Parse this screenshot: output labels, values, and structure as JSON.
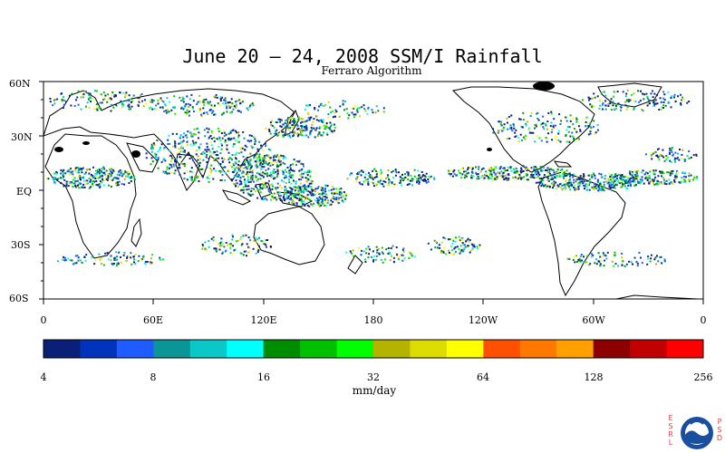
{
  "title": "June 20 – 24, 2008 SSM/I Rainfall",
  "subtitle": "Ferraro Algorithm",
  "lat_labels": [
    "60N",
    "30N",
    "EQ",
    "30S",
    "60S"
  ],
  "lon_labels": [
    "0",
    "60E",
    "120E",
    "180",
    "120W",
    "60W",
    "0"
  ],
  "colorbar": {
    "colors": [
      "#0a1f78",
      "#0033bb",
      "#1e5cff",
      "#0a9696",
      "#0ac8c8",
      "#00ffff",
      "#008c00",
      "#00c000",
      "#00ff00",
      "#b4b400",
      "#dcdc00",
      "#ffff00",
      "#ff5000",
      "#ff7800",
      "#ffa000",
      "#8c0000",
      "#c00000",
      "#ff0000"
    ],
    "tick_labels": [
      "4",
      "8",
      "16",
      "32",
      "64",
      "128",
      "256"
    ],
    "units": "mm/day"
  },
  "logo": {
    "left_letters": [
      "E",
      "S",
      "R",
      "L"
    ],
    "right_letters": [
      "P",
      "S",
      "D"
    ],
    "emblem": "noaa-logo"
  }
}
